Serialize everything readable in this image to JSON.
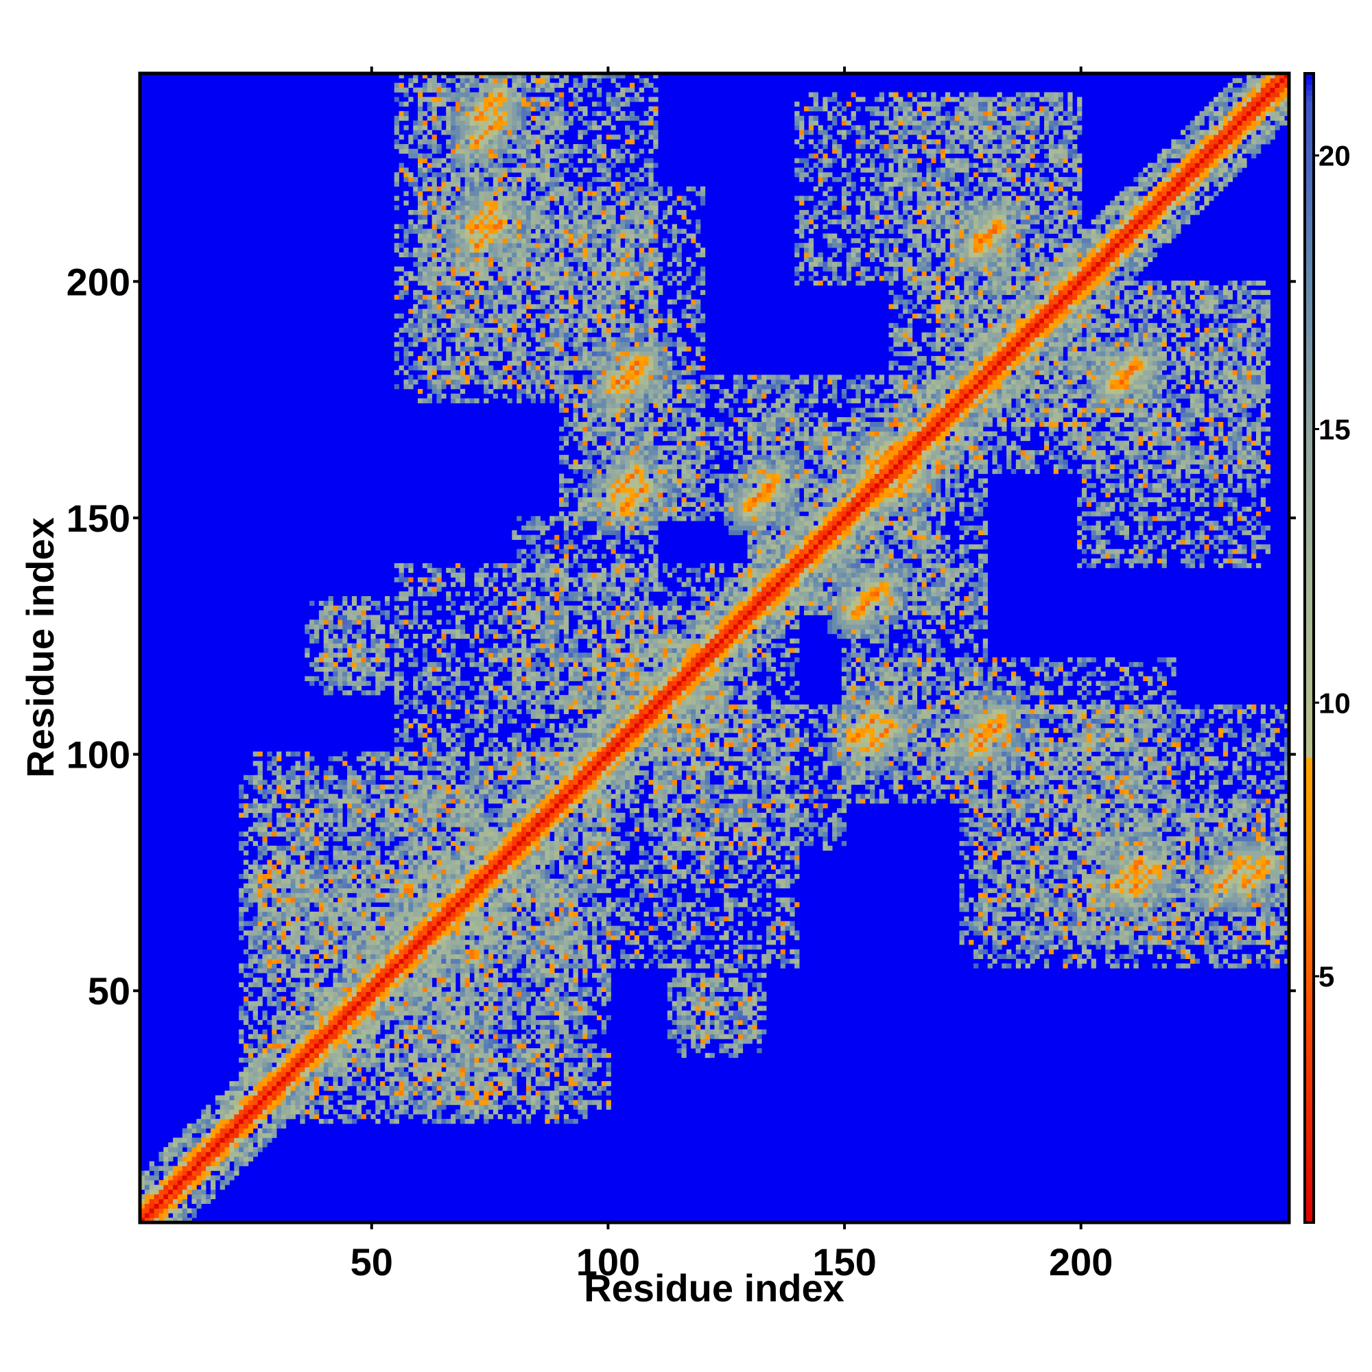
{
  "chart_data": {
    "type": "heatmap",
    "title": "",
    "xlabel": "Residue index",
    "ylabel": "Residue index",
    "xlim": [
      1,
      244
    ],
    "ylim": [
      1,
      244
    ],
    "n_residues": 244,
    "xticks": [
      50,
      100,
      150,
      200
    ],
    "yticks": [
      50,
      100,
      150,
      200
    ],
    "colorbar": {
      "ticks": [
        5,
        10,
        15,
        20
      ],
      "range": [
        0.5,
        21.5
      ],
      "stops": [
        {
          "value": 0.5,
          "color": "#e00000"
        },
        {
          "value": 4.5,
          "color": "#ff5000"
        },
        {
          "value": 7.0,
          "color": "#ff9000"
        },
        {
          "value": 9.0,
          "color": "#ffa500"
        },
        {
          "value": 9.01,
          "color": "#b9c08a"
        },
        {
          "value": 12.0,
          "color": "#a6b896"
        },
        {
          "value": 15.0,
          "color": "#8fa6a2"
        },
        {
          "value": 18.0,
          "color": "#5f86b0"
        },
        {
          "value": 21.0,
          "color": "#3a55cc"
        },
        {
          "value": 21.5,
          "color": "#0000f5"
        }
      ]
    },
    "colors": {
      "background": "#0000f5",
      "near": "#e00000",
      "mid": "#ffa500",
      "far": "#a6b896"
    },
    "contact_segments": [
      {
        "x": [
          72,
          77
        ],
        "y": [
          235,
          240
        ]
      },
      {
        "x": [
          71,
          76
        ],
        "y": [
          211,
          216
        ]
      },
      {
        "x": [
          101,
          106
        ],
        "y": [
          178,
          183
        ]
      },
      {
        "x": [
          101,
          106
        ],
        "y": [
          155,
          160
        ]
      },
      {
        "x": [
          130,
          135
        ],
        "y": [
          153,
          158
        ]
      },
      {
        "x": [
          152,
          157
        ],
        "y": [
          103,
          108
        ]
      },
      {
        "x": [
          152,
          157
        ],
        "y": [
          130,
          135
        ]
      },
      {
        "x": [
          178,
          183
        ],
        "y": [
          103,
          108
        ]
      },
      {
        "x": [
          178,
          183
        ],
        "y": [
          207,
          212
        ]
      },
      {
        "x": [
          208,
          213
        ],
        "y": [
          178,
          183
        ]
      },
      {
        "x": [
          208,
          213
        ],
        "y": [
          72,
          77
        ]
      },
      {
        "x": [
          230,
          235
        ],
        "y": [
          72,
          77
        ]
      },
      {
        "x": [
          155,
          160
        ],
        "y": [
          160,
          165
        ]
      }
    ],
    "contact_patches": [
      {
        "x": [
          22,
          75
        ],
        "y": [
          24,
          95
        ]
      },
      {
        "x": [
          55,
          100
        ],
        "y": [
          25,
          100
        ]
      },
      {
        "x": [
          36,
          52
        ],
        "y": [
          115,
          132
        ]
      },
      {
        "x": [
          113,
          133
        ],
        "y": [
          40,
          56
        ]
      },
      {
        "x": [
          55,
          130
        ],
        "y": [
          100,
          140
        ]
      },
      {
        "x": [
          55,
          90
        ],
        "y": [
          178,
          245
        ]
      },
      {
        "x": [
          90,
          120
        ],
        "y": [
          150,
          220
        ]
      },
      {
        "x": [
          130,
          170
        ],
        "y": [
          130,
          180
        ]
      },
      {
        "x": [
          150,
          180
        ],
        "y": [
          95,
          140
        ]
      },
      {
        "x": [
          160,
          200
        ],
        "y": [
          170,
          240
        ]
      },
      {
        "x": [
          200,
          244
        ],
        "y": [
          60,
          110
        ]
      },
      {
        "x": [
          175,
          215
        ],
        "y": [
          60,
          110
        ]
      },
      {
        "x": [
          200,
          240
        ],
        "y": [
          140,
          200
        ]
      },
      {
        "x": [
          110,
          150
        ],
        "y": [
          80,
          110
        ]
      }
    ]
  }
}
